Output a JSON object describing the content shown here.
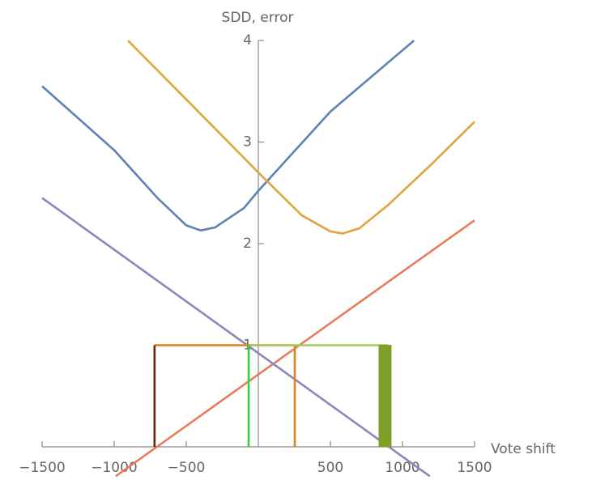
{
  "chart_data": {
    "type": "line",
    "ylabel": "SDD, error",
    "xlabel": "Vote shift",
    "xlim": [
      -1500,
      1500
    ],
    "ylim": [
      0,
      4
    ],
    "xticks": [
      {
        "value": -1500,
        "label": "−1500"
      },
      {
        "value": -1000,
        "label": "−1000"
      },
      {
        "value": -500,
        "label": "−500"
      },
      500,
      1000,
      1500
    ],
    "yticks": [
      1,
      2,
      3,
      4
    ],
    "series": [
      {
        "color": "#5e81b5",
        "x": [
          -1500,
          -1000,
          -700,
          -500,
          -400,
          -300,
          -100,
          0,
          500,
          1080
        ],
        "values": [
          3.55,
          2.92,
          2.45,
          2.18,
          2.13,
          2.16,
          2.35,
          2.52,
          3.3,
          4.0
        ]
      },
      {
        "color": "#e1a33a",
        "x": [
          -905,
          -500,
          0,
          300,
          500,
          585,
          700,
          900,
          1200,
          1500
        ],
        "values": [
          4.0,
          3.42,
          2.7,
          2.28,
          2.12,
          2.1,
          2.15,
          2.38,
          2.78,
          3.2
        ]
      },
      {
        "color": "#eb7a5a",
        "x": [
          -990,
          1500
        ],
        "values": [
          -0.29,
          2.23
        ]
      },
      {
        "color": "#8f85bd",
        "x": [
          -1500,
          1190
        ],
        "values": [
          2.45,
          -0.29
        ]
      },
      {
        "color": "#d8861e",
        "x": [
          -720,
          253,
          253
        ],
        "values": [
          1,
          1,
          0
        ]
      },
      {
        "color": "#5a2a0a",
        "x": [
          -720,
          -720
        ],
        "values": [
          0,
          1
        ]
      },
      {
        "color": "#a3cc5c",
        "x": [
          -67,
          900
        ],
        "values": [
          1,
          1
        ]
      },
      {
        "color": "#3ccf3c",
        "x": [
          -67,
          -67
        ],
        "values": [
          0,
          1
        ]
      },
      {
        "color": "#7f9f28",
        "fill": true,
        "x": [
          837,
          921,
          921,
          837
        ],
        "values": [
          0,
          0,
          1,
          1
        ]
      }
    ]
  }
}
